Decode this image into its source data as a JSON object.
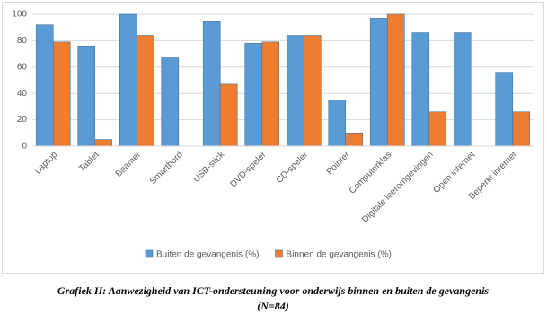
{
  "chart_data": {
    "type": "bar",
    "categories": [
      "Laptop",
      "Tablet",
      "Beamer",
      "Smartbord",
      "USB-stick",
      "DVD-speler",
      "CD-speler",
      "Pointer",
      "Computerklas",
      "Digitale leeromgevingen",
      "Open internet",
      "Beperkt internet"
    ],
    "series": [
      {
        "name": "Buiten de gevangenis (%)",
        "color": "#5b9bd5",
        "values": [
          92,
          76,
          100,
          67,
          95,
          78,
          84,
          35,
          97,
          86,
          86,
          56
        ]
      },
      {
        "name": "Binnen de gevangenis (%)",
        "color": "#ed7d31",
        "values": [
          79,
          5,
          84,
          0,
          47,
          79,
          84,
          10,
          100,
          26,
          0,
          26
        ]
      }
    ],
    "ylim": [
      0,
      100
    ],
    "yticks": [
      0,
      20,
      40,
      60,
      80,
      100
    ],
    "grid": true,
    "legend": "bottom"
  },
  "caption": [
    "Grafiek II: Aanwezigheid van ICT-ondersteuning voor onderwijs binnen en buiten de gevangenis",
    "(N=84)"
  ]
}
